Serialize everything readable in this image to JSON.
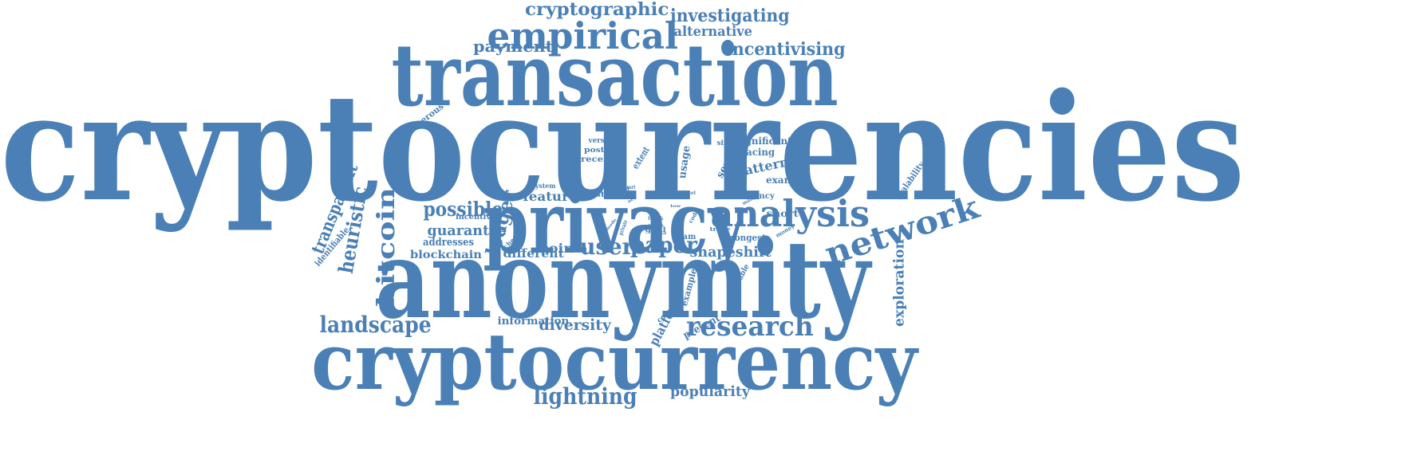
{
  "color": "#4a80b6",
  "words": [
    {
      "text": "cryptocurrencies",
      "rot": 0
    },
    {
      "text": "anonymity",
      "rot": 0
    },
    {
      "text": "cryptocurrency",
      "rot": 0
    },
    {
      "text": "transaction",
      "rot": 0
    },
    {
      "text": "privacy",
      "rot": 0
    },
    {
      "text": "empirical",
      "rot": 0
    },
    {
      "text": "analysis",
      "rot": 0
    },
    {
      "text": "network",
      "rot": -18
    },
    {
      "text": "research",
      "rot": 0
    },
    {
      "text": "landscape",
      "rot": 0
    },
    {
      "text": "bitcoin",
      "rot": -90
    },
    {
      "text": "lightning",
      "rot": 0
    },
    {
      "text": "user",
      "rot": 0
    },
    {
      "text": "paper",
      "rot": 0
    },
    {
      "text": "possible",
      "rot": 0
    },
    {
      "text": "investigating",
      "rot": 0
    },
    {
      "text": "incentivising",
      "rot": 0
    },
    {
      "text": "cryptographic",
      "rot": 0
    },
    {
      "text": "payment",
      "rot": 0
    },
    {
      "text": "alternative",
      "rot": 0
    },
    {
      "text": "heuristic",
      "rot": -80
    },
    {
      "text": "transparent",
      "rot": -68
    },
    {
      "text": "ledger",
      "rot": -75
    },
    {
      "text": "guarantee",
      "rot": 0
    },
    {
      "text": "exploration",
      "rot": -90
    },
    {
      "text": "shapeshift",
      "rot": 0
    },
    {
      "text": "diversity",
      "rot": 0
    },
    {
      "text": "popularity",
      "rot": 0
    },
    {
      "text": "coin",
      "rot": 0
    },
    {
      "text": "different",
      "rot": 0
    },
    {
      "text": "feature",
      "rot": 0
    },
    {
      "text": "pattern",
      "rot": -12
    },
    {
      "text": "platform",
      "rot": -62
    },
    {
      "text": "blockchain",
      "rot": 0
    },
    {
      "text": "information",
      "rot": 0
    },
    {
      "text": "addresses",
      "rot": 0
    },
    {
      "text": "significant",
      "rot": 0
    },
    {
      "text": "tracing",
      "rot": 0
    },
    {
      "text": "short",
      "rot": 0
    },
    {
      "text": "strongest",
      "rot": 0
    },
    {
      "text": "examine",
      "rot": 0
    },
    {
      "text": "present",
      "rot": -28
    },
    {
      "text": "usage",
      "rot": -82
    },
    {
      "text": "service",
      "rot": -62
    },
    {
      "text": "extent",
      "rot": -58
    },
    {
      "text": "identifiable",
      "rot": -50
    },
    {
      "text": "numerous",
      "rot": -38
    },
    {
      "text": "scalability",
      "rot": -55
    },
    {
      "text": "example",
      "rot": -75
    },
    {
      "text": "available",
      "rot": -62
    },
    {
      "text": "contract",
      "rot": -38
    },
    {
      "text": "currency",
      "rot": 0
    },
    {
      "text": "incentive",
      "rot": 0
    },
    {
      "text": "scheme",
      "rot": -45
    },
    {
      "text": "version",
      "rot": 0
    },
    {
      "text": "poster",
      "rot": 0
    },
    {
      "text": "recent",
      "rot": 0
    },
    {
      "text": "study",
      "rot": 0
    },
    {
      "text": "cross",
      "rot": 0
    },
    {
      "text": "scam",
      "rot": 0
    },
    {
      "text": "simple",
      "rot": 0
    },
    {
      "text": "system",
      "rot": 0
    },
    {
      "text": "goal",
      "rot": 0
    },
    {
      "text": "trade",
      "rot": 0
    },
    {
      "text": "money",
      "rot": -30
    },
    {
      "text": "private",
      "rot": -70
    },
    {
      "text": "code",
      "rot": -60
    },
    {
      "text": "main",
      "rot": 0
    },
    {
      "text": "track",
      "rot": 0
    },
    {
      "text": "move",
      "rot": 0
    },
    {
      "text": "data",
      "rot": 0
    },
    {
      "text": "facet",
      "rot": 0
    },
    {
      "text": "lack",
      "rot": 0
    },
    {
      "text": "point",
      "rot": 0
    },
    {
      "text": "smart",
      "rot": 0
    },
    {
      "text": "many",
      "rot": -30
    },
    {
      "text": "mode",
      "rot": -50
    },
    {
      "text": "act",
      "rot": -30
    },
    {
      "text": "low",
      "rot": 0
    }
  ]
}
